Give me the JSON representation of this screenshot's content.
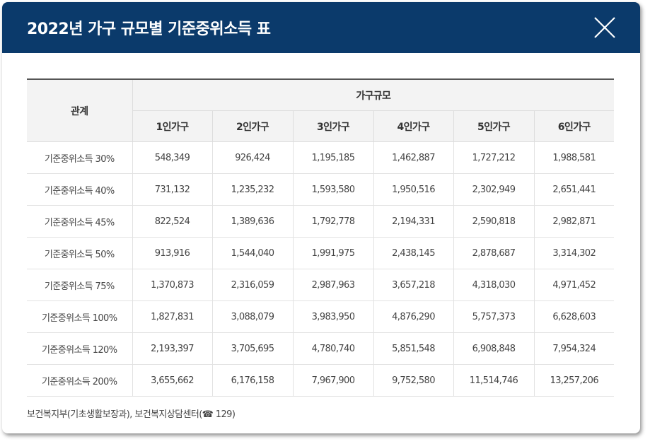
{
  "modal": {
    "title": "2022년 가구 규모별 기준중위소득 표",
    "close_icon": "close-icon"
  },
  "table": {
    "header_relation": "관계",
    "header_group": "가구규모",
    "columns": [
      "1인가구",
      "2인가구",
      "3인가구",
      "4인가구",
      "5인가구",
      "6인가구"
    ],
    "rows": [
      {
        "label": "기준중위소득 30%",
        "values": [
          "548,349",
          "926,424",
          "1,195,185",
          "1,462,887",
          "1,727,212",
          "1,988,581"
        ]
      },
      {
        "label": "기준중위소득 40%",
        "values": [
          "731,132",
          "1,235,232",
          "1,593,580",
          "1,950,516",
          "2,302,949",
          "2,651,441"
        ]
      },
      {
        "label": "기준중위소득 45%",
        "values": [
          "822,524",
          "1,389,636",
          "1,792,778",
          "2,194,331",
          "2,590,818",
          "2,982,871"
        ]
      },
      {
        "label": "기준중위소득 50%",
        "values": [
          "913,916",
          "1,544,040",
          "1,991,975",
          "2,438,145",
          "2,878,687",
          "3,314,302"
        ]
      },
      {
        "label": "기준중위소득 75%",
        "values": [
          "1,370,873",
          "2,316,059",
          "2,987,963",
          "3,657,218",
          "4,318,030",
          "4,971,452"
        ]
      },
      {
        "label": "기준중위소득 100%",
        "values": [
          "1,827,831",
          "3,088,079",
          "3,983,950",
          "4,876,290",
          "5,757,373",
          "6,628,603"
        ]
      },
      {
        "label": "기준중위소득 120%",
        "values": [
          "2,193,397",
          "3,705,695",
          "4,780,740",
          "5,851,548",
          "6,908,848",
          "7,954,324"
        ]
      },
      {
        "label": "기준중위소득 200%",
        "values": [
          "3,655,662",
          "6,176,158",
          "7,967,900",
          "9,752,580",
          "11,514,746",
          "13,257,206"
        ]
      }
    ]
  },
  "footer": {
    "source": "보건복지부(기초생활보장과), 보건복지상담센터(☎ 129)"
  },
  "colors": {
    "header_bg": "#0b3a6b",
    "header_text": "#ffffff",
    "table_header_bg": "#f3f3f3"
  }
}
